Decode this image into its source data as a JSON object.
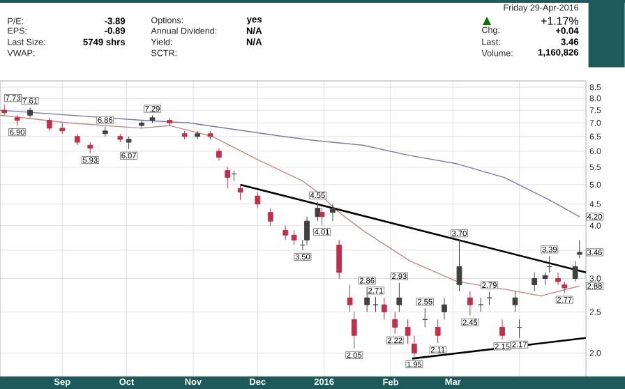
{
  "chart_data": {
    "type": "candlestick",
    "x": [
      "2015-08-05",
      "2015-08-11",
      "2015-08-17",
      "2015-08-26",
      "2015-09-01",
      "2015-09-08",
      "2015-09-14",
      "2015-09-21",
      "2015-09-28",
      "2015-10-02",
      "2015-10-08",
      "2015-10-13",
      "2015-10-21",
      "2015-10-28",
      "2015-11-03",
      "2015-11-09",
      "2015-11-13",
      "2015-11-17",
      "2015-11-20",
      "2015-11-23",
      "2015-12-01",
      "2015-12-07",
      "2015-12-14",
      "2015-12-18",
      "2015-12-22",
      "2015-12-24",
      "2015-12-29",
      "2015-12-31",
      "2016-01-05",
      "2016-01-08",
      "2016-01-13",
      "2016-01-15",
      "2016-01-21",
      "2016-01-25",
      "2016-01-29",
      "2016-02-03",
      "2016-02-05",
      "2016-02-09",
      "2016-02-12",
      "2016-02-17",
      "2016-02-23",
      "2016-02-26",
      "2016-03-04",
      "2016-03-09",
      "2016-03-14",
      "2016-03-18",
      "2016-03-24",
      "2016-03-30",
      "2016-04-01",
      "2016-04-08",
      "2016-04-13",
      "2016-04-15",
      "2016-04-19",
      "2016-04-22",
      "2016-04-27",
      "2016-04-29"
    ],
    "ohlc": [
      [
        7.5,
        7.73,
        7.3,
        7.4
      ],
      [
        7.2,
        7.3,
        6.9,
        7.1
      ],
      [
        7.3,
        7.61,
        7.2,
        7.5
      ],
      [
        7.1,
        7.2,
        6.7,
        6.8
      ],
      [
        6.8,
        7.0,
        6.6,
        6.7
      ],
      [
        6.5,
        6.6,
        6.2,
        6.3
      ],
      [
        6.2,
        6.3,
        5.93,
        6.1
      ],
      [
        6.6,
        6.86,
        6.5,
        6.7
      ],
      [
        6.5,
        6.6,
        6.3,
        6.4
      ],
      [
        6.3,
        6.5,
        6.07,
        6.4
      ],
      [
        6.9,
        7.1,
        6.8,
        7.0
      ],
      [
        7.1,
        7.29,
        7.0,
        7.2
      ],
      [
        7.1,
        7.2,
        6.9,
        7.0
      ],
      [
        6.6,
        6.7,
        6.4,
        6.5
      ],
      [
        6.5,
        6.7,
        6.4,
        6.6
      ],
      [
        6.6,
        6.7,
        6.4,
        6.5
      ],
      [
        6.0,
        6.1,
        5.7,
        5.8
      ],
      [
        5.4,
        5.5,
        4.9,
        5.2
      ],
      [
        5.3,
        5.4,
        5.1,
        5.3
      ],
      [
        4.9,
        5.0,
        4.6,
        4.8
      ],
      [
        4.7,
        4.8,
        4.4,
        4.5
      ],
      [
        4.3,
        4.4,
        4.0,
        4.1
      ],
      [
        3.9,
        4.0,
        3.7,
        3.8
      ],
      [
        3.8,
        3.9,
        3.6,
        3.7
      ],
      [
        3.6,
        3.7,
        3.5,
        3.6
      ],
      [
        3.7,
        4.2,
        3.6,
        4.1
      ],
      [
        4.2,
        4.55,
        4.1,
        4.4
      ],
      [
        4.3,
        4.4,
        4.01,
        4.2
      ],
      [
        4.3,
        4.5,
        4.1,
        4.4
      ],
      [
        3.6,
        3.7,
        3.0,
        3.1
      ],
      [
        2.7,
        2.9,
        2.5,
        2.6
      ],
      [
        2.4,
        2.5,
        2.05,
        2.2
      ],
      [
        2.6,
        2.86,
        2.5,
        2.7
      ],
      [
        2.6,
        2.71,
        2.5,
        2.6
      ],
      [
        2.6,
        2.7,
        2.4,
        2.5
      ],
      [
        2.4,
        2.5,
        2.22,
        2.3
      ],
      [
        2.6,
        2.93,
        2.5,
        2.7
      ],
      [
        2.3,
        2.4,
        2.1,
        2.2
      ],
      [
        2.1,
        2.2,
        1.95,
        2.0
      ],
      [
        2.4,
        2.55,
        2.3,
        2.4
      ],
      [
        2.3,
        2.4,
        2.11,
        2.2
      ],
      [
        2.5,
        2.7,
        2.4,
        2.6
      ],
      [
        2.9,
        3.7,
        2.8,
        3.2
      ],
      [
        2.7,
        2.8,
        2.45,
        2.6
      ],
      [
        2.6,
        2.7,
        2.5,
        2.6
      ],
      [
        2.7,
        2.79,
        2.6,
        2.7
      ],
      [
        2.3,
        2.4,
        2.15,
        2.2
      ],
      [
        2.6,
        2.8,
        2.5,
        2.7
      ],
      [
        2.3,
        2.4,
        2.17,
        2.3
      ],
      [
        2.9,
        3.1,
        2.8,
        3.0
      ],
      [
        3.0,
        3.1,
        2.9,
        3.05
      ],
      [
        3.2,
        3.39,
        3.1,
        3.2
      ],
      [
        3.0,
        3.1,
        2.9,
        2.95
      ],
      [
        2.9,
        2.95,
        2.77,
        2.85
      ],
      [
        3.0,
        3.3,
        2.95,
        3.2
      ],
      [
        3.42,
        3.7,
        3.35,
        3.46
      ]
    ],
    "colors": [
      "#c0304a",
      "#c0304a",
      "#404040",
      "#c0304a",
      "#c0304a",
      "#c0304a",
      "#c0304a",
      "#404040",
      "#c0304a",
      "#404040",
      "#404040",
      "#404040",
      "#c0304a",
      "#c0304a",
      "#404040",
      "#c0304a",
      "#c0304a",
      "#c0304a",
      "#404040",
      "#c0304a",
      "#c0304a",
      "#c0304a",
      "#c0304a",
      "#c0304a",
      "#404040",
      "#404040",
      "#404040",
      "#c0304a",
      "#404040",
      "#c0304a",
      "#c0304a",
      "#c0304a",
      "#404040",
      "#404040",
      "#c0304a",
      "#c0304a",
      "#404040",
      "#c0304a",
      "#c0304a",
      "#404040",
      "#c0304a",
      "#404040",
      "#404040",
      "#c0304a",
      "#404040",
      "#404040",
      "#c0304a",
      "#404040",
      "#404040",
      "#404040",
      "#404040",
      "#404040",
      "#c0304a",
      "#c0304a",
      "#404040",
      "#404040"
    ],
    "series": [
      {
        "type": "line",
        "color": "#7a7aaa",
        "x": [
          "2015-08-03",
          "2015-10-08",
          "2015-10-30",
          "2015-12-13",
          "2015-12-29",
          "2016-01-19",
          "2016-02-10",
          "2016-03-03",
          "2016-03-25",
          "2016-04-15",
          "2016-04-29"
        ],
        "values": [
          7.5,
          7.1,
          7.0,
          6.5,
          6.35,
          6.2,
          5.86,
          5.6,
          5.2,
          4.6,
          4.2
        ]
      },
      {
        "type": "line",
        "color": "#c08a8a",
        "x": [
          "2015-08-03",
          "2015-09-04",
          "2015-10-08",
          "2015-10-21",
          "2015-11-10",
          "2015-12-02",
          "2015-12-22",
          "2015-12-29",
          "2016-01-08",
          "2016-01-19",
          "2016-02-10",
          "2016-03-03",
          "2016-03-25",
          "2016-04-11",
          "2016-04-29"
        ],
        "values": [
          7.3,
          7.0,
          6.8,
          6.9,
          6.5,
          5.7,
          5.1,
          4.8,
          4.3,
          3.9,
          3.3,
          2.95,
          2.83,
          2.73,
          2.88
        ]
      },
      {
        "type": "line",
        "color": "#000000",
        "x": [
          "2015-11-23",
          "2016-05-02"
        ],
        "values": [
          5.0,
          3.1
        ]
      },
      {
        "type": "line",
        "color": "#000000",
        "x": [
          "2016-02-11",
          "2016-05-02"
        ],
        "values": [
          1.94,
          2.17
        ]
      }
    ],
    "xlim": [
      "2015-08-03",
      "2016-05-02"
    ],
    "xticks": [
      {
        "value": "2015-09-01",
        "label": "Sep"
      },
      {
        "value": "2015-10-01",
        "label": "Oct"
      },
      {
        "value": "2015-11-01",
        "label": "Nov"
      },
      {
        "value": "2015-12-01",
        "label": "Dec"
      },
      {
        "value": "2016-01-01",
        "label": "2016"
      },
      {
        "value": "2016-02-01",
        "label": "Feb"
      },
      {
        "value": "2016-03-01",
        "label": "Mar"
      },
      {
        "value": "2016-04-01",
        "label": null
      }
    ],
    "ylim": [
      1.76,
      8.8
    ],
    "yticks": [
      {
        "value": 2,
        "label": "2.0"
      },
      {
        "value": 2.5,
        "label": "2.5"
      },
      {
        "value": 3,
        "label": "3.0"
      },
      {
        "value": 3.5,
        "label": null
      },
      {
        "value": 4,
        "label": "4.0"
      },
      {
        "value": 4.5,
        "label": "4.5"
      },
      {
        "value": 5,
        "label": "5.0"
      },
      {
        "value": 5.5,
        "label": "5.5"
      },
      {
        "value": 6,
        "label": "6.0"
      },
      {
        "value": 6.5,
        "label": "6.5"
      },
      {
        "value": 7,
        "label": "7.0"
      },
      {
        "value": 7.5,
        "label": "7.5"
      },
      {
        "value": 8,
        "label": "8.0"
      },
      {
        "value": 8.5,
        "label": "8.5"
      }
    ],
    "log": "y",
    "grid": true,
    "marker": "none",
    "line_style": "solid",
    "annotations": [
      "P/E:",
      "-3.89",
      "EPS:",
      "-0.89",
      "Last Size:",
      "5749 shrs",
      "VWAP:",
      "Options:",
      "yes",
      "Annual Dividend:",
      "N/A",
      "Yield:",
      "N/A",
      "SCTR:",
      "Friday  29-Apr-2016",
      "+1.17%",
      "Chg:",
      "+0.04",
      "Last:",
      "3.46",
      "Volume:",
      "1,160,826",
      {
        "text": "7.73",
        "x": "2015-08-05",
        "y": 7.73
      },
      {
        "text": "6.90",
        "x": "2015-08-11",
        "y": 6.9
      },
      {
        "text": "7.61",
        "x": "2015-08-17",
        "y": 7.61
      },
      {
        "text": "5.93",
        "x": "2015-09-14",
        "y": 5.93
      },
      {
        "text": "6.86",
        "x": "2015-09-21",
        "y": 6.86
      },
      {
        "text": "6.07",
        "x": "2015-10-02",
        "y": 6.07
      },
      {
        "text": "7.29",
        "x": "2015-10-13",
        "y": 7.29
      },
      {
        "text": "3.50",
        "x": "2015-12-22",
        "y": 3.5
      },
      {
        "text": "4.55",
        "x": "2015-12-29",
        "y": 4.55
      },
      {
        "text": "4.01",
        "x": "2015-12-31",
        "y": 4.01
      },
      {
        "text": "2.05",
        "x": "2016-01-15",
        "y": 2.05
      },
      {
        "text": "2.86",
        "x": "2016-01-21",
        "y": 2.86
      },
      {
        "text": "2.71",
        "x": "2016-01-25",
        "y": 2.71
      },
      {
        "text": "2.22",
        "x": "2016-02-03",
        "y": 2.22
      },
      {
        "text": "2.93",
        "x": "2016-02-05",
        "y": 2.93
      },
      {
        "text": "1.95",
        "x": "2016-02-12",
        "y": 1.95
      },
      {
        "text": "2.55",
        "x": "2016-02-17",
        "y": 2.55
      },
      {
        "text": "2.11",
        "x": "2016-02-23",
        "y": 2.11
      },
      {
        "text": "3.70",
        "x": "2016-03-04",
        "y": 3.7
      },
      {
        "text": "2.45",
        "x": "2016-03-09",
        "y": 2.45
      },
      {
        "text": "2.79",
        "x": "2016-03-18",
        "y": 2.79
      },
      {
        "text": "2.15",
        "x": "2016-03-24",
        "y": 2.15
      },
      {
        "text": "2.17",
        "x": "2016-04-01",
        "y": 2.17
      },
      {
        "text": "3.39",
        "x": "2016-04-15",
        "y": 3.39
      },
      {
        "text": "2.77",
        "x": "2016-04-22",
        "y": 2.77
      },
      {
        "text": "4.20",
        "x": "2016-05-02",
        "y": 4.2
      },
      {
        "text": "3.46",
        "x": "2016-05-02",
        "y": 3.46
      },
      {
        "text": "2.88",
        "x": "2016-05-02",
        "y": 2.88
      }
    ]
  }
}
